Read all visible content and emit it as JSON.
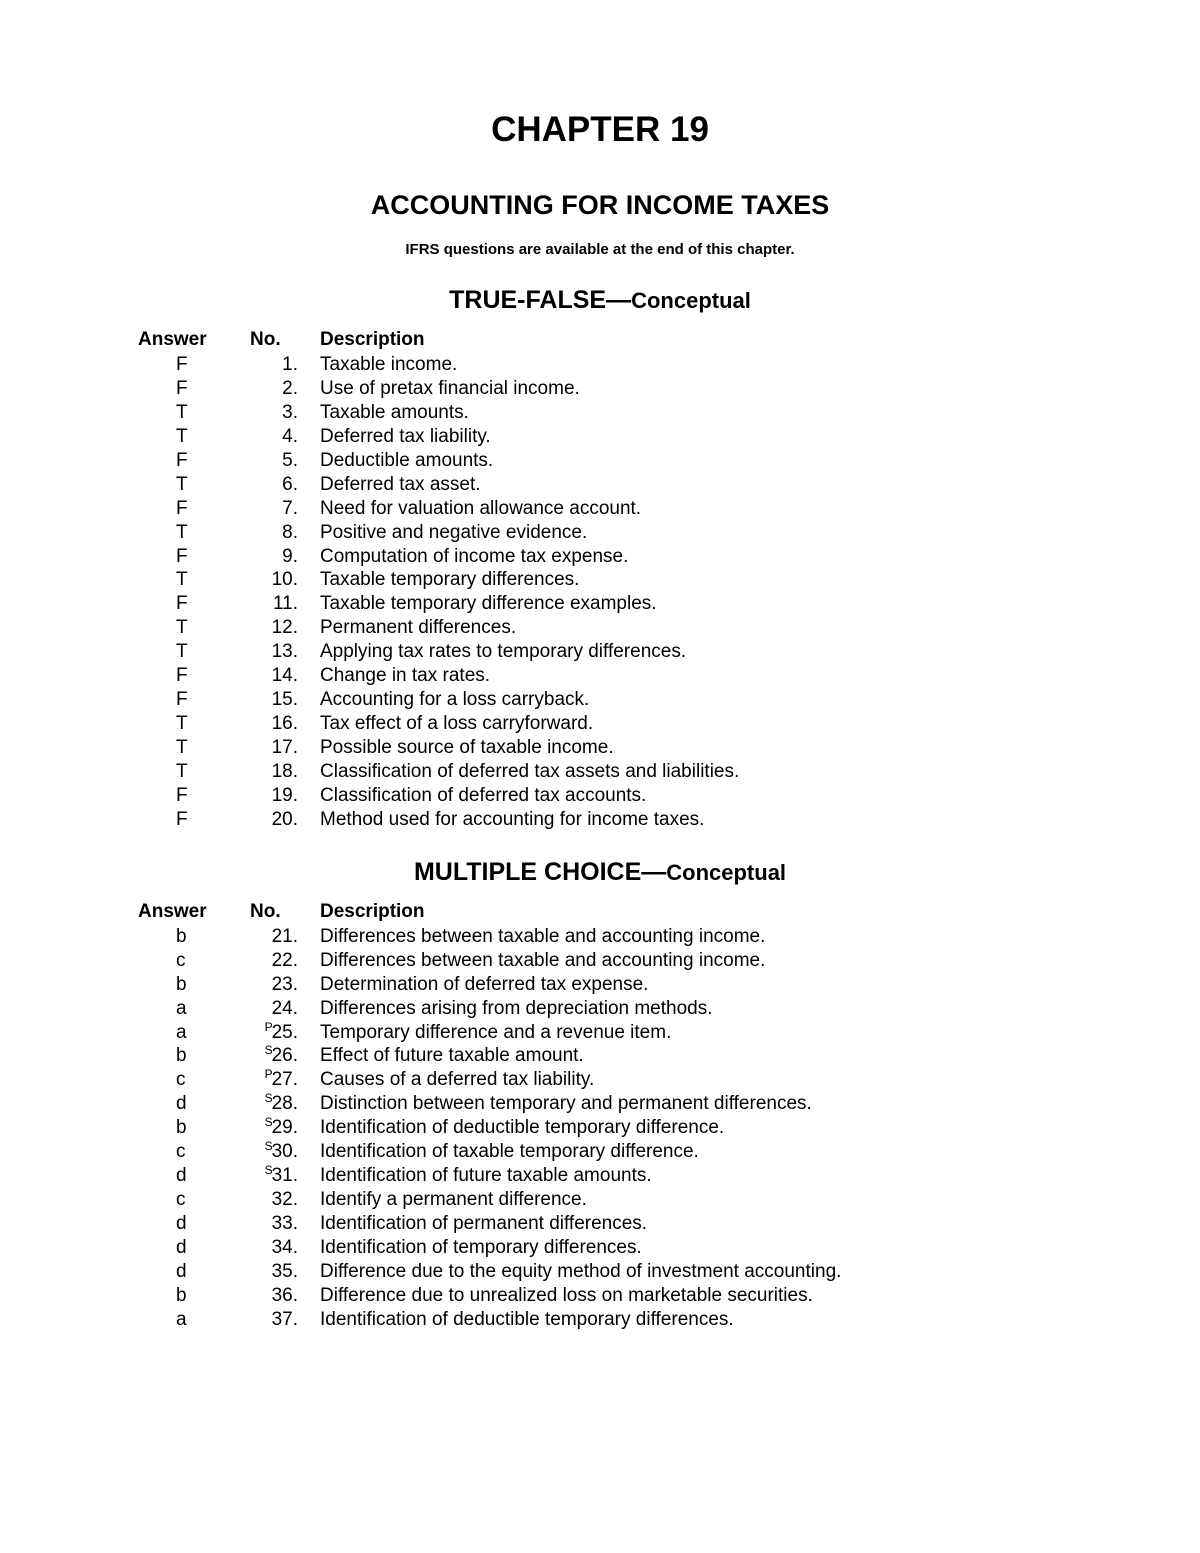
{
  "chapter_title": "CHAPTER 19",
  "subtitle": "ACCOUNTING FOR INCOME TAXES",
  "note": "IFRS questions are available at the end of this chapter.",
  "header": {
    "answer": "Answer",
    "no": "No.",
    "description": "Description"
  },
  "sections": [
    {
      "heading_big": "TRUE-FALSE—",
      "heading_small": "Conceptual",
      "rows": [
        {
          "answer": "F",
          "sup": "",
          "no": "1.",
          "desc": "Taxable income."
        },
        {
          "answer": "F",
          "sup": "",
          "no": "2.",
          "desc": "Use of pretax financial income."
        },
        {
          "answer": "T",
          "sup": "",
          "no": "3.",
          "desc": "Taxable amounts."
        },
        {
          "answer": "T",
          "sup": "",
          "no": "4.",
          "desc": "Deferred tax liability."
        },
        {
          "answer": "F",
          "sup": "",
          "no": "5.",
          "desc": "Deductible amounts."
        },
        {
          "answer": "T",
          "sup": "",
          "no": "6.",
          "desc": "Deferred tax asset."
        },
        {
          "answer": "F",
          "sup": "",
          "no": "7.",
          "desc": "Need for valuation allowance account."
        },
        {
          "answer": "T",
          "sup": "",
          "no": "8.",
          "desc": "Positive and negative evidence."
        },
        {
          "answer": "F",
          "sup": "",
          "no": "9.",
          "desc": "Computation of income tax expense."
        },
        {
          "answer": "T",
          "sup": "",
          "no": "10.",
          "desc": "Taxable temporary differences."
        },
        {
          "answer": "F",
          "sup": "",
          "no": "11.",
          "desc": "Taxable temporary difference examples."
        },
        {
          "answer": "T",
          "sup": "",
          "no": "12.",
          "desc": "Permanent differences."
        },
        {
          "answer": "T",
          "sup": "",
          "no": "13.",
          "desc": "Applying tax rates to temporary differences."
        },
        {
          "answer": "F",
          "sup": "",
          "no": "14.",
          "desc": "Change in tax rates."
        },
        {
          "answer": "F",
          "sup": "",
          "no": "15.",
          "desc": "Accounting for a loss carryback."
        },
        {
          "answer": "T",
          "sup": "",
          "no": "16.",
          "desc": "Tax effect of a loss carryforward."
        },
        {
          "answer": "T",
          "sup": "",
          "no": "17.",
          "desc": "Possible source of taxable income."
        },
        {
          "answer": "T",
          "sup": "",
          "no": "18.",
          "desc": "Classification of deferred tax assets and liabilities."
        },
        {
          "answer": "F",
          "sup": "",
          "no": "19.",
          "desc": "Classification of deferred tax accounts."
        },
        {
          "answer": "F",
          "sup": "",
          "no": "20.",
          "desc": "Method used for accounting for income taxes."
        }
      ]
    },
    {
      "heading_big": "MULTIPLE CHOICE—",
      "heading_small": "Conceptual",
      "rows": [
        {
          "answer": "b",
          "sup": "",
          "no": "21.",
          "desc": "Differences between taxable and accounting income."
        },
        {
          "answer": "c",
          "sup": "",
          "no": "22.",
          "desc": "Differences between taxable and accounting income."
        },
        {
          "answer": "b",
          "sup": "",
          "no": "23.",
          "desc": "Determination of deferred tax expense."
        },
        {
          "answer": "a",
          "sup": "",
          "no": "24.",
          "desc": "Differences arising from depreciation methods."
        },
        {
          "answer": "a",
          "sup": "P",
          "no": "25.",
          "desc": "Temporary difference and a revenue item."
        },
        {
          "answer": "b",
          "sup": "S",
          "no": "26.",
          "desc": "Effect of future taxable amount."
        },
        {
          "answer": "c",
          "sup": "P",
          "no": "27.",
          "desc": "Causes of a deferred tax liability."
        },
        {
          "answer": "d",
          "sup": "S",
          "no": "28.",
          "desc": "Distinction between temporary and permanent differences."
        },
        {
          "answer": "b",
          "sup": "S",
          "no": "29.",
          "desc": "Identification of deductible temporary difference."
        },
        {
          "answer": "c",
          "sup": "S",
          "no": "30.",
          "desc": "Identification of taxable temporary difference."
        },
        {
          "answer": "d",
          "sup": "S",
          "no": "31.",
          "desc": "Identification of future taxable amounts."
        },
        {
          "answer": "c",
          "sup": "",
          "no": "32.",
          "desc": "Identify a permanent difference."
        },
        {
          "answer": "d",
          "sup": "",
          "no": "33.",
          "desc": "Identification of permanent differences."
        },
        {
          "answer": "d",
          "sup": "",
          "no": "34.",
          "desc": "Identification of temporary differences."
        },
        {
          "answer": "d",
          "sup": "",
          "no": "35.",
          "desc": "Difference due to the equity method of investment accounting."
        },
        {
          "answer": "b",
          "sup": "",
          "no": "36.",
          "desc": "Difference due to unrealized loss on marketable securities."
        },
        {
          "answer": "a",
          "sup": "",
          "no": "37.",
          "desc": "Identification of deductible temporary differences."
        }
      ]
    }
  ]
}
